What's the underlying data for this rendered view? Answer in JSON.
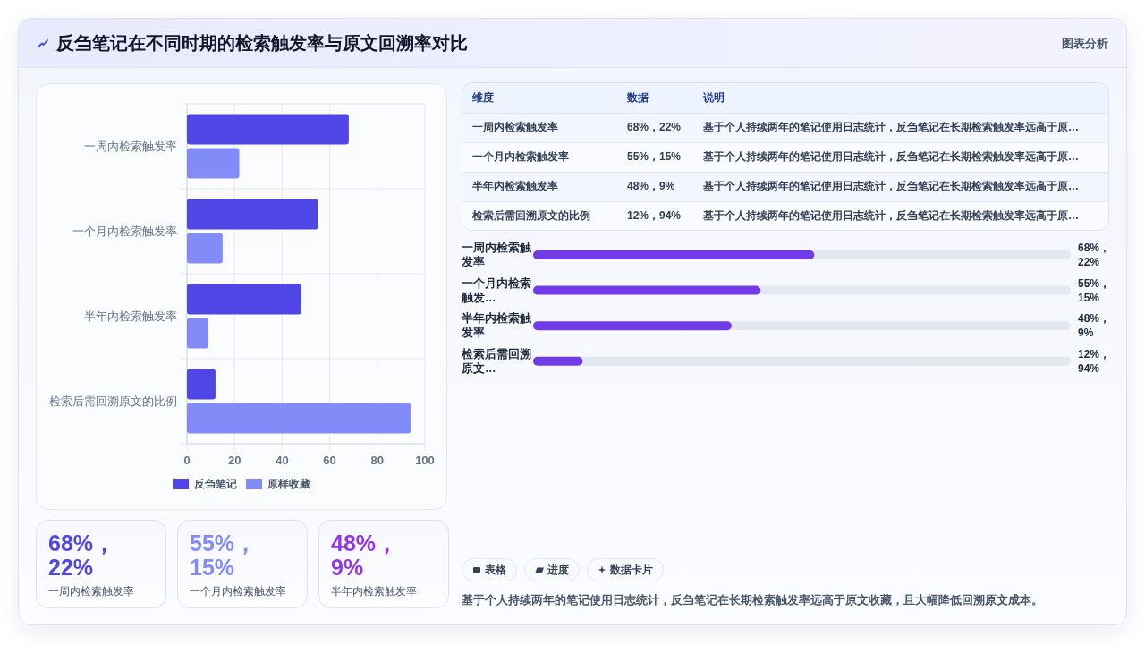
{
  "chart_data": [
    {
      "type": "other",
      "title": "反刍笔记在不同时期的检索触发率与原文回溯率对比",
      "annotations": [
        "图表分析"
      ]
    },
    {
      "type": "bar",
      "orientation": "horizontal",
      "categories": [
        "一周内检索触发率",
        "一个月内检索触发率",
        "半年内检索触发率",
        "检索后需回溯原文的比例"
      ],
      "series": [
        {
          "name": "反刍笔记",
          "color": "#4f46e5",
          "values": [
            68,
            55,
            48,
            12
          ]
        },
        {
          "name": "原样收藏",
          "color": "#818cf8",
          "values": [
            22,
            15,
            9,
            94
          ]
        }
      ],
      "xlim": [
        0,
        100
      ],
      "xticks": [
        0,
        20,
        40,
        60,
        80,
        100
      ],
      "grid": true,
      "legend": "bottom"
    },
    {
      "type": "other",
      "annotations": [
        "维度",
        "数据",
        "说明",
        "一周内检索触发率",
        "68%，22%",
        "基于个人持续两年的笔记使用日志统计，反刍笔记在长期检索触发率远高于原…",
        "一个月内检索触发率",
        "55%，15%",
        "基于个人持续两年的笔记使用日志统计，反刍笔记在长期检索触发率远高于原…",
        "半年内检索触发率",
        "48%，9%",
        "基于个人持续两年的笔记使用日志统计，反刍笔记在长期检索触发率远高于原…",
        "检索后需回溯原文的比例",
        "12%，94%",
        "基于个人持续两年的笔记使用日志统计，反刍笔记在长期检索触发率远高于原…"
      ]
    },
    {
      "type": "bar",
      "orientation": "horizontal",
      "categories": [
        "一周内检索触发率",
        "一个月内检索触发…",
        "半年内检索触发率",
        "检索后需回溯原文…"
      ],
      "values": [
        68,
        55,
        48,
        12
      ],
      "value_labels": [
        "68%，22%",
        "55%，15%",
        "48%，9%",
        "12%，94%"
      ],
      "color": "#713ce7",
      "xlim": [
        0,
        130
      ],
      "tick_labels": "y"
    },
    {
      "type": "other",
      "annotations": [
        "68%，22%",
        "一周内检索触发率",
        "55%，15%",
        "一个月内检索触发率",
        "48%，9%",
        "半年内检索触发率"
      ],
      "colors": [
        "#4f46e5",
        "#818cf8",
        "#9333ea"
      ]
    },
    {
      "type": "other",
      "annotations": [
        "表格",
        "进度",
        "数据卡片"
      ]
    },
    {
      "type": "other",
      "annotations": [
        "基于个人持续两年的笔记使用日志统计，反刍笔记在长期检索触发率远高于原文收藏，且大幅降低回溯原文成本。"
      ]
    }
  ]
}
